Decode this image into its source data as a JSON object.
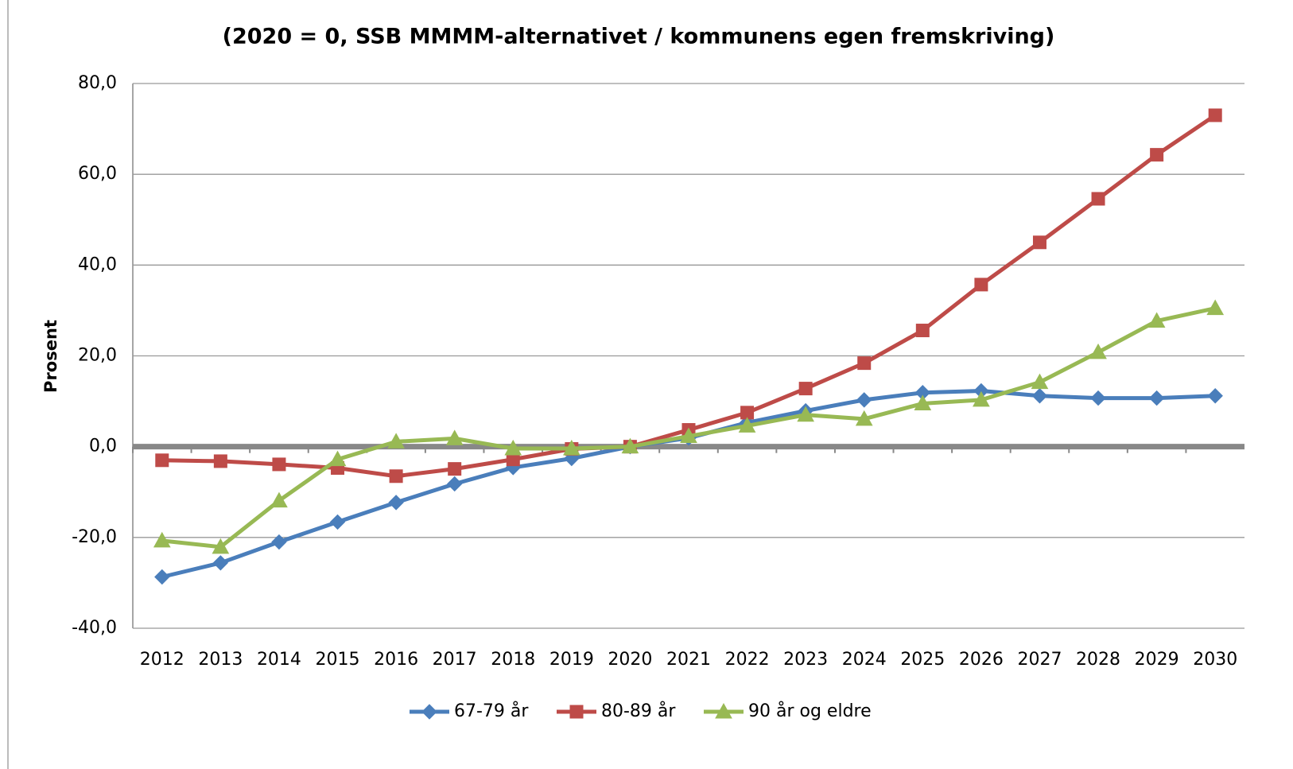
{
  "chart_data": {
    "type": "line",
    "title": "(2020 = 0, SSB MMMM-alternativet / kommunens egen fremskriving)",
    "y_label": "Prosent",
    "categories": [
      "2012",
      "2013",
      "2014",
      "2015",
      "2016",
      "2017",
      "2018",
      "2019",
      "2020",
      "2021",
      "2022",
      "2023",
      "2024",
      "2025",
      "2026",
      "2027",
      "2028",
      "2029",
      "2030"
    ],
    "series": [
      {
        "name": "67-79 år",
        "color": "#4a7ebb",
        "marker": "diamond",
        "values": [
          -28.7,
          -25.6,
          -21.0,
          -16.6,
          -12.3,
          -8.2,
          -4.6,
          -2.6,
          0,
          1.9,
          5.3,
          7.9,
          10.3,
          11.9,
          12.3,
          11.2,
          10.7,
          10.7,
          11.2
        ]
      },
      {
        "name": "80-89 år",
        "color": "#be4b48",
        "marker": "square",
        "values": [
          -3.0,
          -3.2,
          -3.9,
          -4.7,
          -6.5,
          -4.9,
          -2.8,
          -0.5,
          0,
          3.7,
          7.5,
          12.8,
          18.4,
          25.6,
          35.7,
          45.0,
          54.6,
          64.3,
          73.0
        ]
      },
      {
        "name": "90 år og eldre",
        "color": "#98b954",
        "marker": "triangle",
        "values": [
          -20.7,
          -22.1,
          -11.9,
          -2.8,
          1.1,
          1.8,
          -0.4,
          -0.4,
          0,
          2.3,
          4.6,
          7.0,
          6.1,
          9.5,
          10.3,
          14.2,
          20.8,
          27.7,
          30.5
        ]
      }
    ],
    "ylim": [
      -40,
      80
    ],
    "yticks": [
      {
        "value": -40,
        "label": "-40,0"
      },
      {
        "value": -20,
        "label": "-20,0"
      },
      {
        "value": 0,
        "label": "0,0"
      },
      {
        "value": 20,
        "label": "20,0"
      },
      {
        "value": 40,
        "label": "40,0"
      },
      {
        "value": 60,
        "label": "60,0"
      },
      {
        "value": 80,
        "label": "80,0"
      }
    ],
    "grid": true,
    "legend": "bottom"
  }
}
